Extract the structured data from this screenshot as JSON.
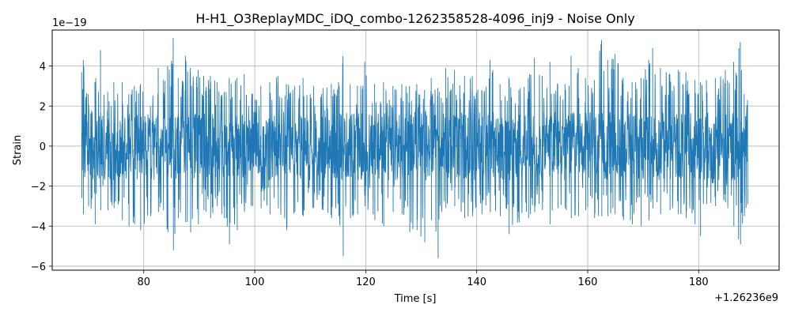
{
  "chart_data": {
    "type": "line",
    "title": "H-H1_O3ReplayMDC_iDQ_combo-1262358528-4096_inj9 - Noise Only",
    "xlabel": "Time [s]",
    "ylabel": "Strain",
    "x_offset_label": "+1.26236e9",
    "y_scale_label": "1e−19",
    "xlim": [
      63.5,
      194.5
    ],
    "ylim": [
      -6.2,
      5.8
    ],
    "x_ticks": [
      80,
      100,
      120,
      140,
      160,
      180
    ],
    "x_tick_labels": [
      "80",
      "100",
      "120",
      "140",
      "160",
      "180"
    ],
    "y_ticks": [
      -6,
      -4,
      -2,
      0,
      2,
      4
    ],
    "y_tick_labels": [
      "−6",
      "−4",
      "−2",
      "0",
      "2",
      "4"
    ],
    "grid": true,
    "line_color": "#1f77b4",
    "series": [
      {
        "x_range": [
          68.8,
          188.8
        ],
        "envelope_points": [
          [
            68.8,
            3.7,
            -2.6
          ],
          [
            69.1,
            4.3,
            -3.4
          ],
          [
            70.0,
            2.6,
            -3.0
          ],
          [
            71.2,
            3.2,
            -3.9
          ],
          [
            72.2,
            4.8,
            -3.2
          ],
          [
            73.5,
            2.7,
            -3.2
          ],
          [
            74.6,
            3.2,
            -3.1
          ],
          [
            76.1,
            3.2,
            -3.7
          ],
          [
            77.3,
            2.6,
            -4.0
          ],
          [
            78.3,
            3.0,
            -3.9
          ],
          [
            79.4,
            3.1,
            -4.2
          ],
          [
            81.2,
            2.0,
            -3.5
          ],
          [
            82.6,
            3.9,
            -3.3
          ],
          [
            83.5,
            3.3,
            -3.2
          ],
          [
            84.3,
            4.0,
            -4.3
          ],
          [
            85.3,
            5.4,
            -5.2
          ],
          [
            86.2,
            3.4,
            -3.6
          ],
          [
            87.5,
            4.5,
            -3.8
          ],
          [
            88.4,
            3.9,
            -4.3
          ],
          [
            89.8,
            3.8,
            -3.9
          ],
          [
            90.8,
            3.5,
            -3.2
          ],
          [
            92.0,
            3.5,
            -3.6
          ],
          [
            93.2,
            3.2,
            -3.0
          ],
          [
            94.5,
            2.7,
            -3.6
          ],
          [
            95.4,
            3.4,
            -4.9
          ],
          [
            96.8,
            3.4,
            -4.2
          ],
          [
            98.1,
            3.6,
            -3.3
          ],
          [
            99.6,
            2.6,
            -3.0
          ],
          [
            101.1,
            3.0,
            -3.1
          ],
          [
            102.7,
            3.2,
            -3.4
          ],
          [
            104.2,
            3.5,
            -3.1
          ],
          [
            105.7,
            3.1,
            -4.2
          ],
          [
            107.2,
            3.0,
            -3.3
          ],
          [
            108.7,
            3.4,
            -3.5
          ],
          [
            110.6,
            3.0,
            -3.1
          ],
          [
            112.3,
            2.9,
            -3.2
          ],
          [
            113.8,
            3.1,
            -3.6
          ],
          [
            115.1,
            3.2,
            -3.5
          ],
          [
            115.9,
            4.5,
            -5.5
          ],
          [
            117.2,
            3.1,
            -3.6
          ],
          [
            118.5,
            3.0,
            -3.4
          ],
          [
            119.8,
            4.2,
            -3.0
          ],
          [
            121.6,
            3.1,
            -3.7
          ],
          [
            123.2,
            3.2,
            -4.0
          ],
          [
            124.9,
            3.0,
            -3.3
          ],
          [
            126.5,
            3.1,
            -3.4
          ],
          [
            127.9,
            3.0,
            -4.3
          ],
          [
            129.2,
            3.1,
            -4.2
          ],
          [
            130.6,
            2.8,
            -4.8
          ],
          [
            131.8,
            3.4,
            -3.7
          ],
          [
            133.0,
            2.9,
            -5.6
          ],
          [
            134.4,
            3.9,
            -3.1
          ],
          [
            136.0,
            3.8,
            -3.0
          ],
          [
            137.8,
            3.5,
            -3.6
          ],
          [
            139.2,
            3.5,
            -3.5
          ],
          [
            140.9,
            2.8,
            -3.4
          ],
          [
            142.4,
            4.3,
            -3.3
          ],
          [
            144.2,
            3.1,
            -3.5
          ],
          [
            145.8,
            3.4,
            -4.4
          ],
          [
            147.6,
            2.8,
            -3.8
          ],
          [
            149.3,
            3.4,
            -3.6
          ],
          [
            150.4,
            4.4,
            -3.3
          ],
          [
            151.8,
            3.5,
            -3.2
          ],
          [
            153.2,
            4.2,
            -3.9
          ],
          [
            154.6,
            3.1,
            -3.1
          ],
          [
            155.9,
            3.1,
            -3.1
          ],
          [
            157.0,
            4.5,
            -3.6
          ],
          [
            158.3,
            3.9,
            -3.5
          ],
          [
            159.6,
            3.4,
            -3.2
          ],
          [
            161.2,
            3.3,
            -3.6
          ],
          [
            162.5,
            5.3,
            -3.5
          ],
          [
            163.6,
            4.3,
            -3.5
          ],
          [
            164.9,
            4.6,
            -3.4
          ],
          [
            166.4,
            3.4,
            -3.7
          ],
          [
            168.0,
            3.2,
            -3.9
          ],
          [
            169.6,
            3.4,
            -4.0
          ],
          [
            171.0,
            4.3,
            -3.7
          ],
          [
            171.7,
            4.9,
            -3.1
          ],
          [
            173.1,
            3.9,
            -3.4
          ],
          [
            174.8,
            3.6,
            -3.2
          ],
          [
            176.3,
            3.8,
            -3.4
          ],
          [
            177.7,
            3.7,
            -3.6
          ],
          [
            179.3,
            3.3,
            -3.9
          ],
          [
            180.3,
            3.2,
            -4.5
          ],
          [
            181.4,
            3.3,
            -2.9
          ],
          [
            183.0,
            3.4,
            -3.0
          ],
          [
            184.8,
            3.8,
            -2.8
          ],
          [
            186.3,
            4.2,
            -4.0
          ],
          [
            187.5,
            5.2,
            -4.9
          ],
          [
            188.2,
            2.6,
            -3.5
          ],
          [
            188.8,
            2.3,
            -2.9
          ]
        ]
      }
    ]
  }
}
